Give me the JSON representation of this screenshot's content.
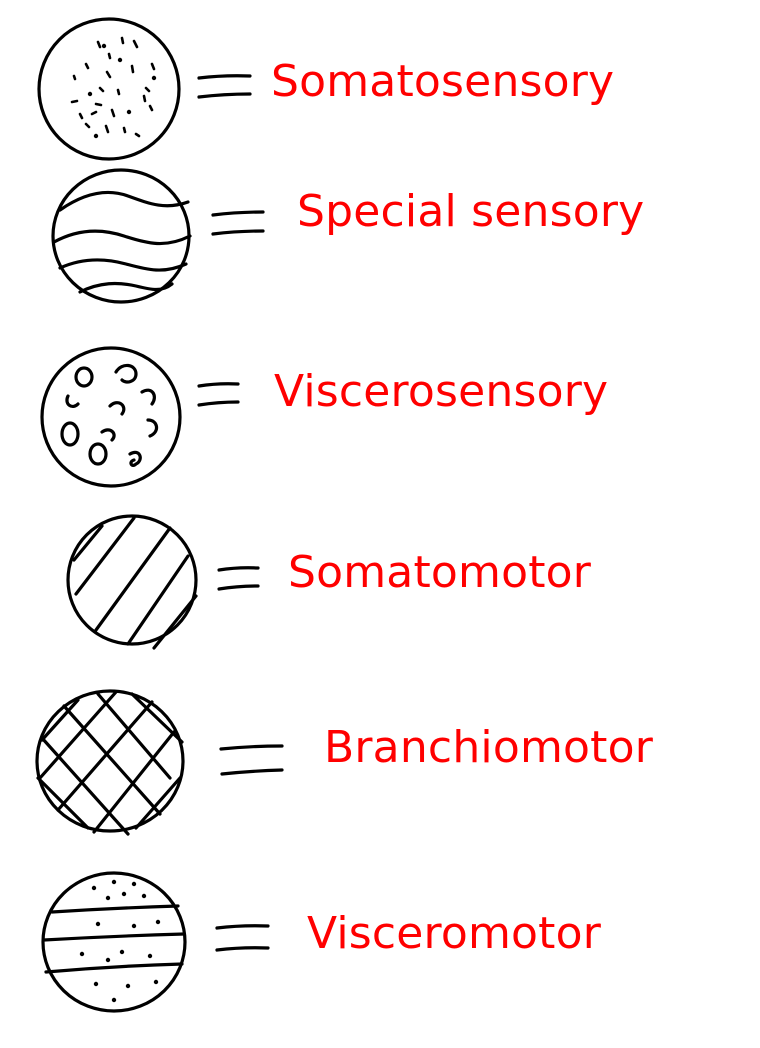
{
  "colors": {
    "label": "#ff0000",
    "ink": "#000000",
    "background": "#ffffff"
  },
  "legend": [
    {
      "id": "somatosensory",
      "pattern": "scattered-dashes",
      "label": "Somatosensory"
    },
    {
      "id": "special-sensory",
      "pattern": "wavy-lines",
      "label": "Special sensory"
    },
    {
      "id": "viscerosensory",
      "pattern": "small-loops",
      "label": "Viscerosensory"
    },
    {
      "id": "somatomotor",
      "pattern": "diagonal-hatch",
      "label": "Somatomotor"
    },
    {
      "id": "branchiomotor",
      "pattern": "cross-hatch",
      "label": "Branchiomotor"
    },
    {
      "id": "visceromotor",
      "pattern": "horizontal-lines-with-dots",
      "label": "Visceromotor"
    }
  ]
}
